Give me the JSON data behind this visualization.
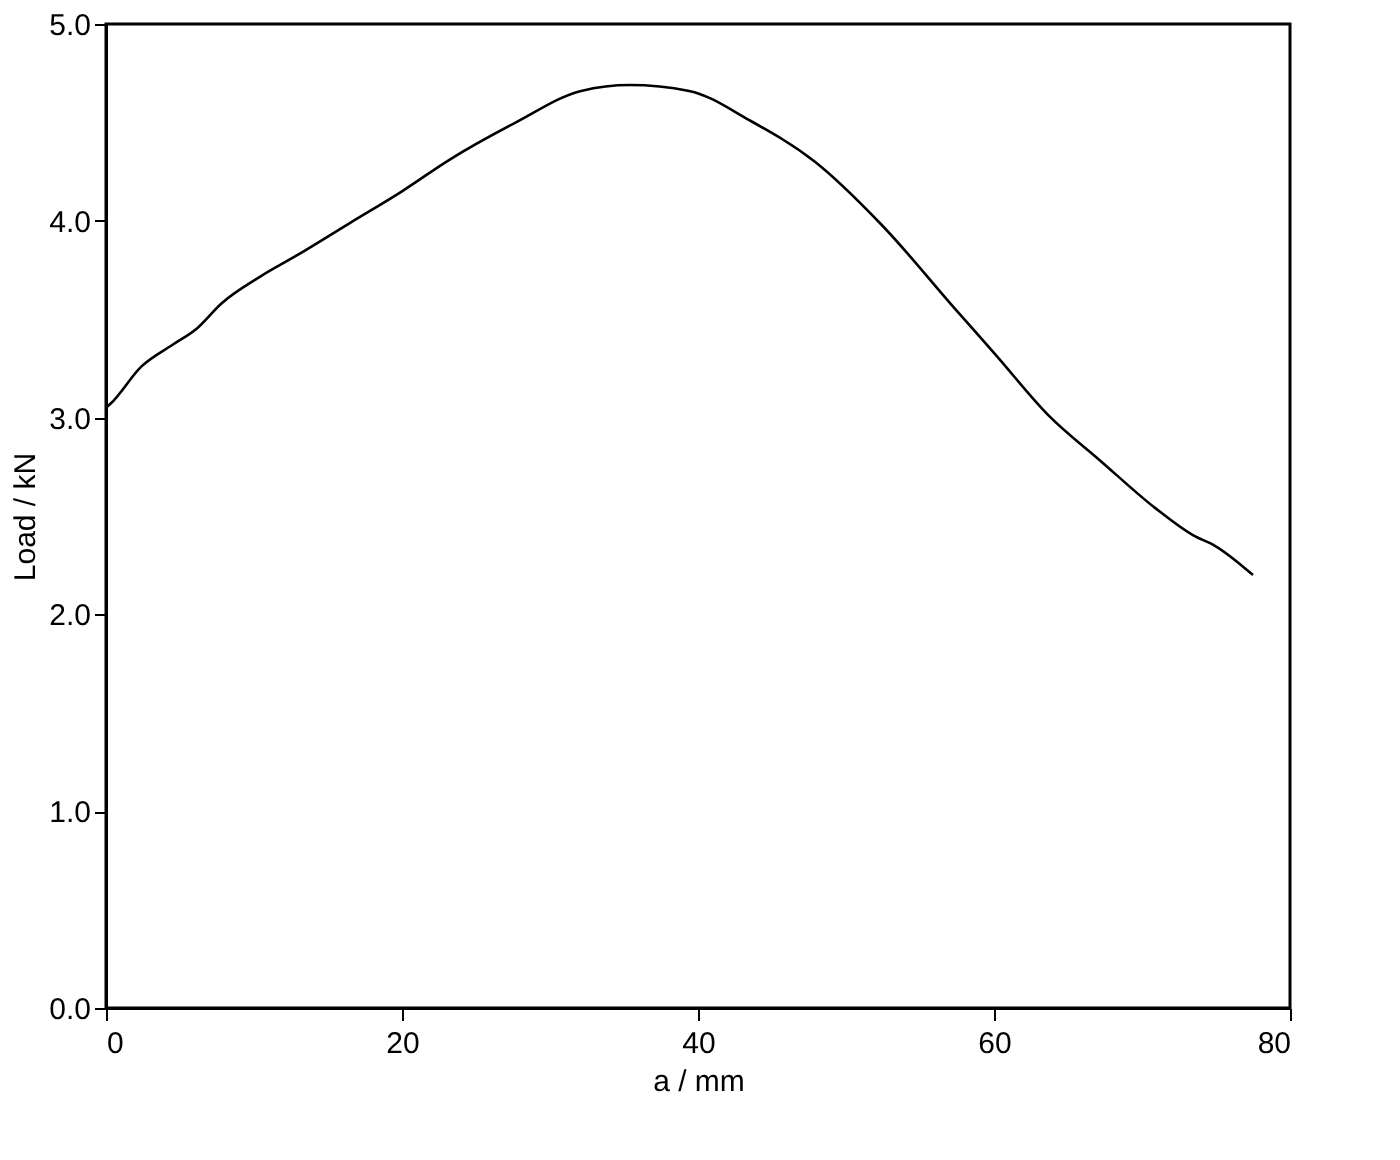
{
  "chart_data": {
    "type": "line",
    "xlabel": "a / mm",
    "ylabel": "Load / kN",
    "x": [
      0,
      0.3,
      2.4,
      4.5,
      6.1,
      7.8,
      10.5,
      12.8,
      16.5,
      20,
      23.2,
      27.7,
      32.1,
      35.4,
      39.4,
      43.5,
      47.9,
      52.4,
      57.4,
      60.1,
      63.7,
      67.2,
      70.9,
      73.5,
      74.9,
      77.5
    ],
    "series": [
      {
        "color": "#000000",
        "values": [
          3.05,
          3.07,
          3.26,
          3.37,
          3.45,
          3.58,
          3.72,
          3.82,
          3.99,
          4.15,
          4.31,
          4.5,
          4.66,
          4.69,
          4.66,
          4.51,
          4.3,
          3.98,
          3.55,
          3.32,
          3.01,
          2.78,
          2.54,
          2.4,
          2.35,
          2.2
        ]
      }
    ],
    "xlim": [
      0,
      80
    ],
    "xticks": [
      0,
      20,
      40,
      60,
      80
    ],
    "ylim": [
      0,
      5
    ],
    "yticks": [
      {
        "value": 0,
        "label": "0.0"
      },
      {
        "value": 1,
        "label": "1.0"
      },
      {
        "value": 2,
        "label": "2.0"
      },
      {
        "value": 3,
        "label": "3.0"
      },
      {
        "value": 4,
        "label": "4.0"
      },
      {
        "value": 5,
        "label": "5.0"
      }
    ],
    "grid": false,
    "marker": "none",
    "line_style": "solid"
  }
}
